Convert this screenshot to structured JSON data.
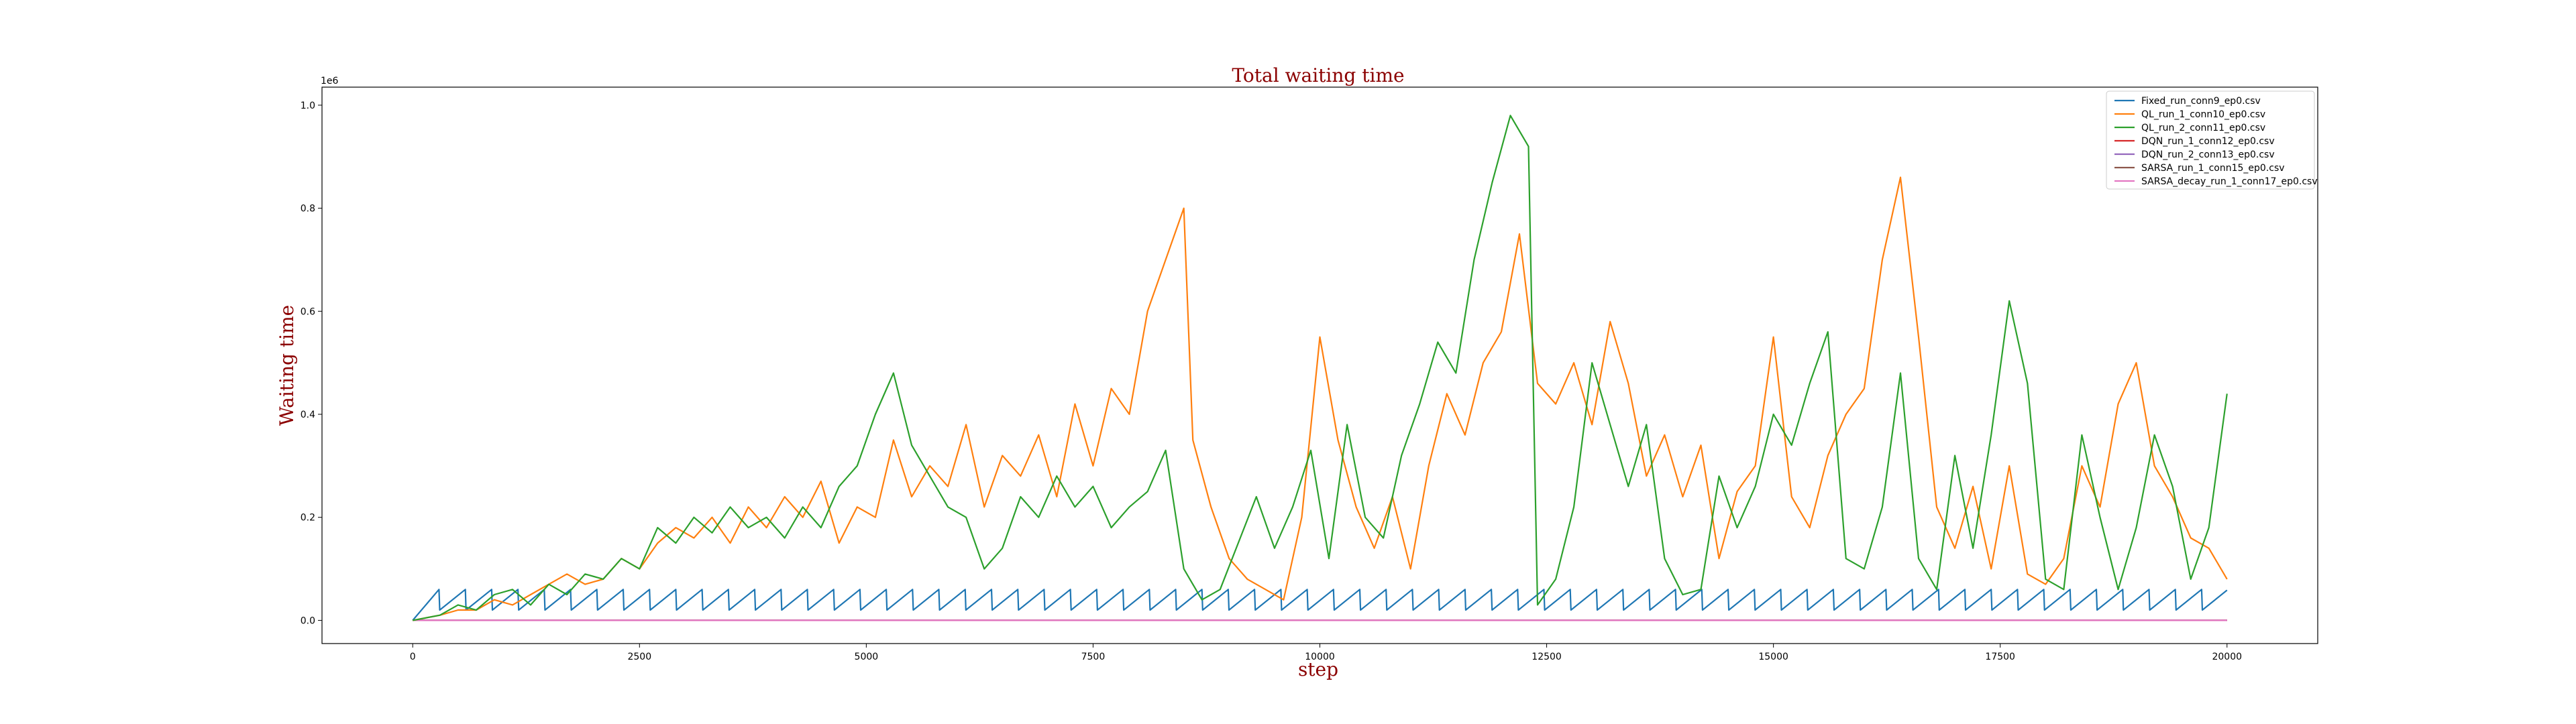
{
  "chart_data": {
    "type": "line",
    "title": "Total waiting time",
    "xlabel": "step",
    "ylabel": "Waiting time",
    "y_offset_label": "1e6",
    "xlim": [
      -1000,
      21000
    ],
    "ylim": [
      -0.045,
      1.035
    ],
    "x_ticks": [
      0,
      2500,
      5000,
      7500,
      10000,
      12500,
      15000,
      17500,
      20000
    ],
    "x_tick_labels": [
      "0",
      "2500",
      "5000",
      "7500",
      "10000",
      "12500",
      "15000",
      "17500",
      "20000"
    ],
    "y_ticks": [
      0.0,
      0.2,
      0.4,
      0.6,
      0.8,
      1.0
    ],
    "y_tick_labels": [
      "0.0",
      "0.2",
      "0.4",
      "0.6",
      "0.8",
      "1.0"
    ],
    "grid": false,
    "legend_position": "top-right",
    "series": [
      {
        "name": "Fixed_run_conn9_ep0.csv",
        "color": "#1f77b4",
        "pattern": "sawtooth",
        "period": 290,
        "low": 0.02,
        "high": 0.06,
        "start": 0
      },
      {
        "name": "QL_run_1_conn10_ep0.csv",
        "color": "#ff7f0e",
        "x": [
          0,
          300,
          500,
          700,
          900,
          1100,
          1300,
          1500,
          1700,
          1900,
          2100,
          2300,
          2500,
          2700,
          2900,
          3100,
          3300,
          3500,
          3700,
          3900,
          4100,
          4300,
          4500,
          4700,
          4900,
          5100,
          5300,
          5500,
          5700,
          5900,
          6100,
          6300,
          6500,
          6700,
          6900,
          7100,
          7300,
          7500,
          7700,
          7900,
          8100,
          8300,
          8500,
          8600,
          8800,
          9000,
          9200,
          9400,
          9600,
          9800,
          10000,
          10200,
          10400,
          10600,
          10800,
          11000,
          11200,
          11400,
          11600,
          11800,
          12000,
          12200,
          12400,
          12600,
          12800,
          13000,
          13200,
          13400,
          13600,
          13800,
          14000,
          14200,
          14400,
          14600,
          14800,
          15000,
          15200,
          15400,
          15600,
          15800,
          16000,
          16200,
          16400,
          16600,
          16800,
          17000,
          17200,
          17400,
          17600,
          17800,
          18000,
          18200,
          18400,
          18600,
          18800,
          19000,
          19200,
          19400,
          19600,
          19800,
          20000
        ],
        "values": [
          0,
          0.01,
          0.02,
          0.02,
          0.04,
          0.03,
          0.05,
          0.07,
          0.09,
          0.07,
          0.08,
          0.12,
          0.1,
          0.15,
          0.18,
          0.16,
          0.2,
          0.15,
          0.22,
          0.18,
          0.24,
          0.2,
          0.27,
          0.15,
          0.22,
          0.2,
          0.35,
          0.24,
          0.3,
          0.26,
          0.38,
          0.22,
          0.32,
          0.28,
          0.36,
          0.24,
          0.42,
          0.3,
          0.45,
          0.4,
          0.6,
          0.7,
          0.8,
          0.35,
          0.22,
          0.12,
          0.08,
          0.06,
          0.04,
          0.2,
          0.55,
          0.35,
          0.22,
          0.14,
          0.24,
          0.1,
          0.3,
          0.44,
          0.36,
          0.5,
          0.56,
          0.75,
          0.46,
          0.42,
          0.5,
          0.38,
          0.58,
          0.46,
          0.28,
          0.36,
          0.24,
          0.34,
          0.12,
          0.25,
          0.3,
          0.55,
          0.24,
          0.18,
          0.32,
          0.4,
          0.45,
          0.7,
          0.86,
          0.55,
          0.22,
          0.14,
          0.26,
          0.1,
          0.3,
          0.09,
          0.07,
          0.12,
          0.3,
          0.22,
          0.42,
          0.5,
          0.3,
          0.24,
          0.16,
          0.14,
          0.08
        ]
      },
      {
        "name": "QL_run_2_conn11_ep0.csv",
        "color": "#2ca02c",
        "x": [
          0,
          300,
          500,
          700,
          900,
          1100,
          1300,
          1500,
          1700,
          1900,
          2100,
          2300,
          2500,
          2700,
          2900,
          3100,
          3300,
          3500,
          3700,
          3900,
          4100,
          4300,
          4500,
          4700,
          4900,
          5100,
          5300,
          5500,
          5700,
          5900,
          6100,
          6300,
          6500,
          6700,
          6900,
          7100,
          7300,
          7500,
          7700,
          7900,
          8100,
          8300,
          8500,
          8700,
          8900,
          9100,
          9300,
          9500,
          9700,
          9900,
          10100,
          10300,
          10500,
          10700,
          10900,
          11100,
          11300,
          11500,
          11700,
          11900,
          12100,
          12300,
          12400,
          12600,
          12800,
          13000,
          13200,
          13400,
          13600,
          13800,
          14000,
          14200,
          14400,
          14600,
          14800,
          15000,
          15200,
          15400,
          15600,
          15800,
          16000,
          16200,
          16400,
          16600,
          16800,
          17000,
          17200,
          17400,
          17600,
          17800,
          18000,
          18200,
          18400,
          18600,
          18800,
          19000,
          19200,
          19400,
          19600,
          19800,
          20000
        ],
        "values": [
          0,
          0.01,
          0.03,
          0.02,
          0.05,
          0.06,
          0.03,
          0.07,
          0.05,
          0.09,
          0.08,
          0.12,
          0.1,
          0.18,
          0.15,
          0.2,
          0.17,
          0.22,
          0.18,
          0.2,
          0.16,
          0.22,
          0.18,
          0.26,
          0.3,
          0.4,
          0.48,
          0.34,
          0.28,
          0.22,
          0.2,
          0.1,
          0.14,
          0.24,
          0.2,
          0.28,
          0.22,
          0.26,
          0.18,
          0.22,
          0.25,
          0.33,
          0.1,
          0.04,
          0.06,
          0.15,
          0.24,
          0.14,
          0.22,
          0.33,
          0.12,
          0.38,
          0.2,
          0.16,
          0.32,
          0.42,
          0.54,
          0.48,
          0.7,
          0.85,
          0.98,
          0.92,
          0.03,
          0.08,
          0.22,
          0.5,
          0.38,
          0.26,
          0.38,
          0.12,
          0.05,
          0.06,
          0.28,
          0.18,
          0.26,
          0.4,
          0.34,
          0.46,
          0.56,
          0.12,
          0.1,
          0.22,
          0.48,
          0.12,
          0.06,
          0.32,
          0.14,
          0.36,
          0.62,
          0.46,
          0.08,
          0.06,
          0.36,
          0.2,
          0.06,
          0.18,
          0.36,
          0.26,
          0.08,
          0.18,
          0.44
        ]
      },
      {
        "name": "DQN_run_1_conn12_ep0.csv",
        "color": "#d62728",
        "pattern": "flat",
        "level": 0.0
      },
      {
        "name": "DQN_run_2_conn13_ep0.csv",
        "color": "#9467bd",
        "pattern": "flat",
        "level": 0.0
      },
      {
        "name": "SARSA_run_1_conn15_ep0.csv",
        "color": "#8c564b",
        "pattern": "flat",
        "level": 0.0
      },
      {
        "name": "SARSA_decay_run_1_conn17_ep0.csv",
        "color": "#e377c2",
        "pattern": "flat",
        "level": 0.0
      }
    ]
  }
}
